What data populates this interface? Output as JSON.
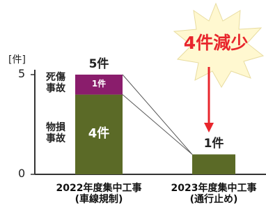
{
  "chart_data": {
    "type": "stacked-bar",
    "y_label": "[件]",
    "categories": [
      "2022年度集中工事\n(車線規制)",
      "2023年度集中工事\n(通行止め)"
    ],
    "series": [
      {
        "name": "物損\n事故",
        "color": "#5b6a27",
        "values": [
          4,
          1
        ],
        "value_labels": [
          "4件",
          null
        ]
      },
      {
        "name": "死傷\n事故",
        "color": "#8a1d6c",
        "values": [
          1,
          0
        ],
        "value_labels": [
          "1件",
          null
        ]
      }
    ],
    "total_labels": [
      "5件",
      "1件"
    ],
    "annotation": "4件減少",
    "ylim": [
      0,
      5
    ],
    "yticks": [
      0,
      5
    ]
  }
}
